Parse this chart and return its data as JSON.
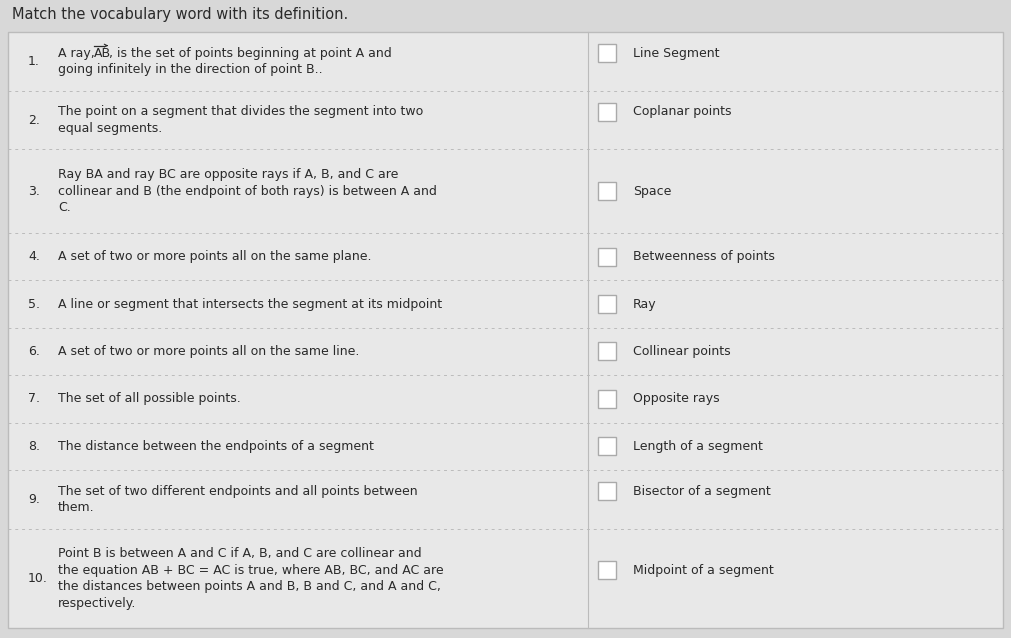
{
  "title": "Match the vocabulary word with its definition.",
  "bg_outer": "#d8d8d8",
  "bg_inner": "#e8e8e8",
  "text_color": "#2a2a2a",
  "border_color": "#bbbbbb",
  "row_divider_color": "#bbbbbb",
  "checkbox_border": "#aaaaaa",
  "checkbox_fill": "#ffffff",
  "font_size_title": 10.5,
  "font_size_body": 9.0,
  "definitions": [
    {
      "num": "1.",
      "lines": [
        "A ray, AB⃗, is the set of points beginning at point A and",
        "going infinitely in the direction of point B.."
      ],
      "term": "Line Segment",
      "cb_row": 1
    },
    {
      "num": "2.",
      "lines": [
        "The point on a segment that divides the segment into two",
        "equal segments."
      ],
      "term": "Coplanar points",
      "cb_row": 1
    },
    {
      "num": "3.",
      "lines": [
        "Ray BA and ray BC are opposite rays if A, B, and C are",
        "collinear and B (the endpoint of both rays) is between A and",
        "C."
      ],
      "term": "Space",
      "cb_row": 2
    },
    {
      "num": "4.",
      "lines": [
        "A set of two or more points all on the same plane."
      ],
      "term": "Betweenness of points",
      "cb_row": 1
    },
    {
      "num": "5.",
      "lines": [
        "A line or segment that intersects the segment at its midpoint"
      ],
      "term": "Ray",
      "cb_row": 1
    },
    {
      "num": "6.",
      "lines": [
        "A set of two or more points all on the same line."
      ],
      "term": "Collinear points",
      "cb_row": 1
    },
    {
      "num": "7.",
      "lines": [
        "The set of all possible points."
      ],
      "term": "Opposite rays",
      "cb_row": 1
    },
    {
      "num": "8.",
      "lines": [
        "The distance between the endpoints of a segment"
      ],
      "term": "Length of a segment",
      "cb_row": 1
    },
    {
      "num": "9.",
      "lines": [
        "The set of two different endpoints and all points between",
        "them."
      ],
      "term": "Bisector of a segment",
      "cb_row": 1
    },
    {
      "num": "10.",
      "lines": [
        "Point B is between A and C if A, B, and C are collinear and",
        "the equation AB + BC = AC is true, where AB, BC, and AC are",
        "the distances between points A and B, B and C, and A and C,",
        "respectively."
      ],
      "term": "Midpoint of a segment",
      "cb_row": 2
    }
  ]
}
